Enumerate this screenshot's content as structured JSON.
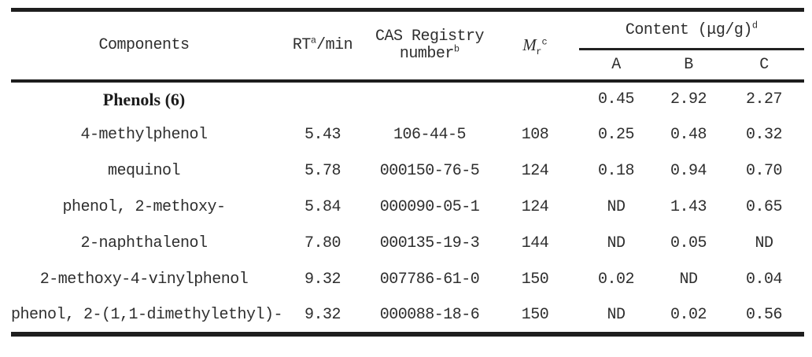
{
  "table": {
    "header": {
      "components": "Components",
      "rt_base": "RT",
      "rt_sup": "a",
      "rt_rest": "/min",
      "cas_line1": "CAS Registry",
      "cas_line2": "number",
      "cas_sup": "b",
      "mr_base": "M",
      "mr_sub": "r",
      "mr_sup": "c",
      "content_base": "Content (μg/g)",
      "content_sup": "d",
      "subcols": [
        "A",
        "B",
        "C"
      ]
    },
    "rows": [
      {
        "name": "Phenols (6)",
        "rt": "",
        "cas": "",
        "mr": "",
        "a": "0.45",
        "b": "2.92",
        "c": "2.27"
      },
      {
        "name": "4-methylphenol",
        "rt": "5.43",
        "cas": "106-44-5",
        "mr": "108",
        "a": "0.25",
        "b": "0.48",
        "c": "0.32"
      },
      {
        "name": "mequinol",
        "rt": "5.78",
        "cas": "000150-76-5",
        "mr": "124",
        "a": "0.18",
        "b": "0.94",
        "c": "0.70"
      },
      {
        "name": "phenol, 2-methoxy-",
        "rt": "5.84",
        "cas": "000090-05-1",
        "mr": "124",
        "a": "ND",
        "b": "1.43",
        "c": "0.65"
      },
      {
        "name": "2-naphthalenol",
        "rt": "7.80",
        "cas": "000135-19-3",
        "mr": "144",
        "a": "ND",
        "b": "0.05",
        "c": "ND"
      },
      {
        "name": "2-methoxy-4-vinylphenol",
        "rt": "9.32",
        "cas": "007786-61-0",
        "mr": "150",
        "a": "0.02",
        "b": "ND",
        "c": "0.04"
      },
      {
        "name": "phenol, 2-(1,1-dimethylethyl)-",
        "rt": "9.32",
        "cas": "000088-18-6",
        "mr": "150",
        "a": "ND",
        "b": "0.02",
        "c": "0.56"
      }
    ]
  },
  "colors": {
    "rule": "#1e1e1e",
    "text": "#2e2e2e"
  }
}
